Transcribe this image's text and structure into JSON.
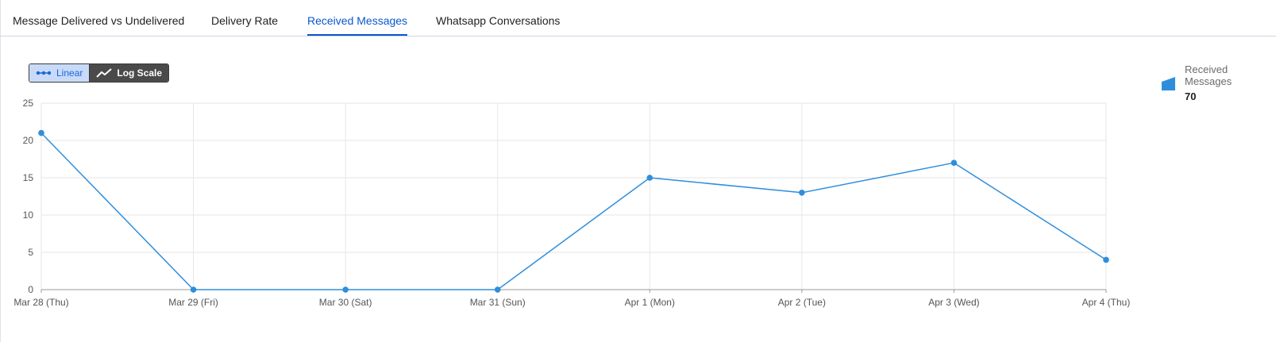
{
  "tabs": [
    {
      "label": "Message Delivered vs Undelivered",
      "active": false
    },
    {
      "label": "Delivery Rate",
      "active": false
    },
    {
      "label": "Received Messages",
      "active": true
    },
    {
      "label": "Whatsapp Conversations",
      "active": false
    }
  ],
  "scale_toggle": {
    "linear_label": "Linear",
    "log_label": "Log Scale",
    "selected": "Linear"
  },
  "legend": {
    "name": "Received Messages",
    "total": "70",
    "color": "#2f8edb"
  },
  "colors": {
    "accent": "#0b57d0",
    "series": "#2f8edb"
  },
  "chart_data": {
    "type": "line",
    "categories": [
      "Mar 28 (Thu)",
      "Mar 29 (Fri)",
      "Mar 30 (Sat)",
      "Mar 31 (Sun)",
      "Apr 1 (Mon)",
      "Apr 2 (Tue)",
      "Apr 3 (Wed)",
      "Apr 4 (Thu)"
    ],
    "series": [
      {
        "name": "Received Messages",
        "values": [
          21,
          0,
          0,
          0,
          15,
          13,
          17,
          4
        ]
      }
    ],
    "yticks": [
      0,
      5,
      10,
      15,
      20,
      25
    ],
    "ylim": [
      0,
      25
    ],
    "grid": true,
    "legend_position": "top-right"
  }
}
